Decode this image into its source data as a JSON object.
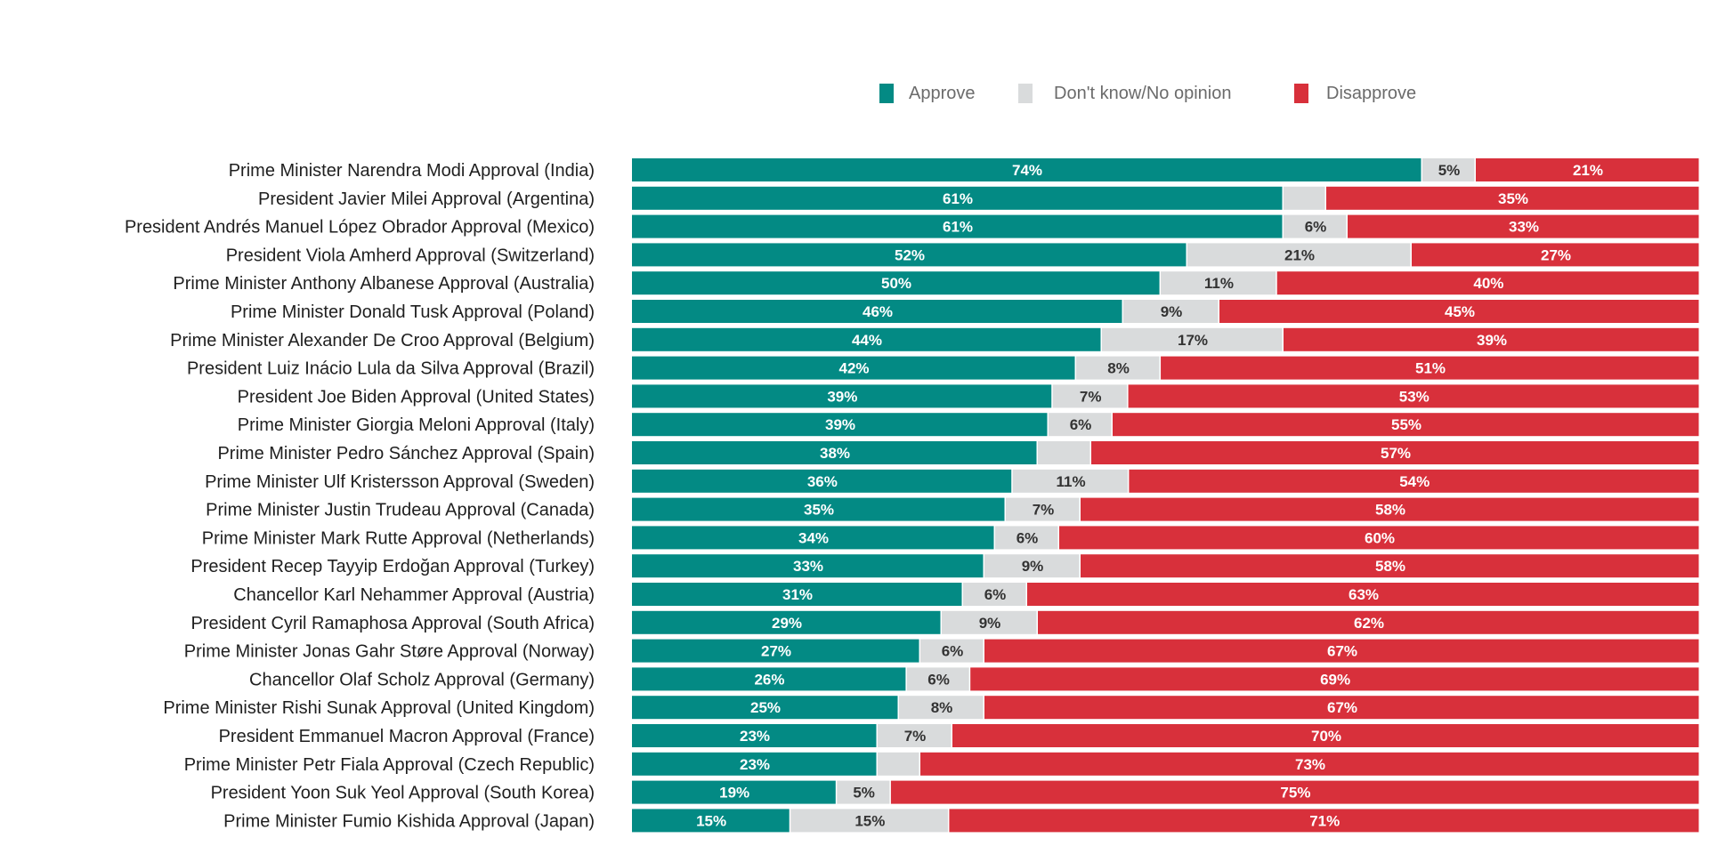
{
  "chart_data": {
    "type": "bar",
    "orientation": "horizontal",
    "stacked": true,
    "normalized": true,
    "legend_position": "top",
    "grid": false,
    "xlim": [
      0,
      100
    ],
    "colors": {
      "Approve": "#038a84",
      "Don't know/No opinion": "#d9dbdc",
      "Disapprove": "#d8303b",
      "label_on_dark": "#ffffff",
      "label_on_light": "#333333"
    },
    "categories": [
      "Prime Minister Narendra Modi Approval (India)",
      "President Javier Milei Approval (Argentina)",
      "President Andrés Manuel López Obrador Approval (Mexico)",
      "President Viola Amherd Approval (Switzerland)",
      "Prime Minister Anthony Albanese Approval (Australia)",
      "Prime Minister Donald Tusk Approval (Poland)",
      "Prime Minister Alexander De Croo Approval (Belgium)",
      "President Luiz Inácio Lula da Silva Approval (Brazil)",
      "President Joe Biden Approval (United States)",
      "Prime Minister Giorgia Meloni Approval (Italy)",
      "Prime Minister Pedro Sánchez Approval (Spain)",
      "Prime Minister Ulf Kristersson Approval (Sweden)",
      "Prime Minister Justin Trudeau Approval (Canada)",
      "Prime Minister Mark Rutte Approval (Netherlands)",
      "President Recep Tayyip Erdoğan Approval (Turkey)",
      "Chancellor Karl Nehammer Approval (Austria)",
      "President Cyril Ramaphosa Approval (South Africa)",
      "Prime Minister Jonas Gahr Støre Approval (Norway)",
      "Chancellor Olaf Scholz Approval (Germany)",
      "Prime Minister Rishi Sunak Approval (United Kingdom)",
      "President Emmanuel Macron Approval (France)",
      "Prime Minister Petr Fiala Approval (Czech Republic)",
      "President Yoon Suk Yeol Approval (South Korea)",
      "Prime Minister Fumio Kishida Approval (Japan)"
    ],
    "series": [
      {
        "name": "Approve",
        "values": [
          74,
          61,
          61,
          52,
          50,
          46,
          44,
          42,
          39,
          39,
          38,
          36,
          35,
          34,
          33,
          31,
          29,
          27,
          26,
          25,
          23,
          23,
          19,
          15
        ]
      },
      {
        "name": "Don't know/No opinion",
        "values": [
          5,
          4,
          6,
          21,
          11,
          9,
          17,
          8,
          7,
          6,
          5,
          11,
          7,
          6,
          9,
          6,
          9,
          6,
          6,
          8,
          7,
          4,
          5,
          15
        ]
      },
      {
        "name": "Disapprove",
        "values": [
          21,
          35,
          33,
          27,
          40,
          45,
          39,
          51,
          53,
          55,
          57,
          54,
          58,
          60,
          58,
          63,
          62,
          67,
          69,
          67,
          70,
          73,
          75,
          71
        ]
      }
    ],
    "value_labels_shown": [
      [
        true,
        true,
        true
      ],
      [
        true,
        false,
        true
      ],
      [
        true,
        true,
        true
      ],
      [
        true,
        true,
        true
      ],
      [
        true,
        true,
        true
      ],
      [
        true,
        true,
        true
      ],
      [
        true,
        true,
        true
      ],
      [
        true,
        true,
        true
      ],
      [
        true,
        true,
        true
      ],
      [
        true,
        true,
        true
      ],
      [
        true,
        false,
        true
      ],
      [
        true,
        true,
        true
      ],
      [
        true,
        true,
        true
      ],
      [
        true,
        true,
        true
      ],
      [
        true,
        true,
        true
      ],
      [
        true,
        true,
        true
      ],
      [
        true,
        true,
        true
      ],
      [
        true,
        true,
        true
      ],
      [
        true,
        true,
        true
      ],
      [
        true,
        true,
        true
      ],
      [
        true,
        true,
        true
      ],
      [
        true,
        false,
        true
      ],
      [
        true,
        true,
        true
      ],
      [
        true,
        true,
        true
      ]
    ],
    "value_suffix": "%"
  }
}
